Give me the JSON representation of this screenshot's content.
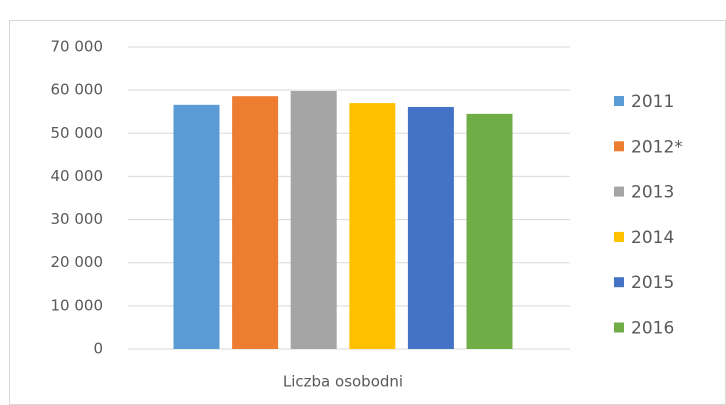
{
  "chart_data": {
    "type": "bar",
    "categories": [
      "Liczba osobodni"
    ],
    "series": [
      {
        "name": "2011",
        "color": "#5b9bd5",
        "values": [
          56600
        ]
      },
      {
        "name": "2012*",
        "color": "#ed7d31",
        "values": [
          58600
        ]
      },
      {
        "name": "2013",
        "color": "#a5a5a5",
        "values": [
          59800
        ]
      },
      {
        "name": "2014",
        "color": "#ffc000",
        "values": [
          57000
        ]
      },
      {
        "name": "2015",
        "color": "#4472c4",
        "values": [
          56100
        ]
      },
      {
        "name": "2016",
        "color": "#70ad47",
        "values": [
          54500
        ]
      }
    ],
    "ylim": [
      0,
      70000
    ],
    "yticks": [
      0,
      {
        "value": 10000,
        "label": "10 000"
      },
      {
        "value": 20000,
        "label": "20 000"
      },
      {
        "value": 30000,
        "label": "30 000"
      },
      {
        "value": 40000,
        "label": "40 000"
      },
      {
        "value": 50000,
        "label": "50 000"
      },
      {
        "value": 60000,
        "label": "60 000"
      },
      {
        "value": 70000,
        "label": "70 000"
      }
    ],
    "grid": true,
    "legend": "right"
  }
}
